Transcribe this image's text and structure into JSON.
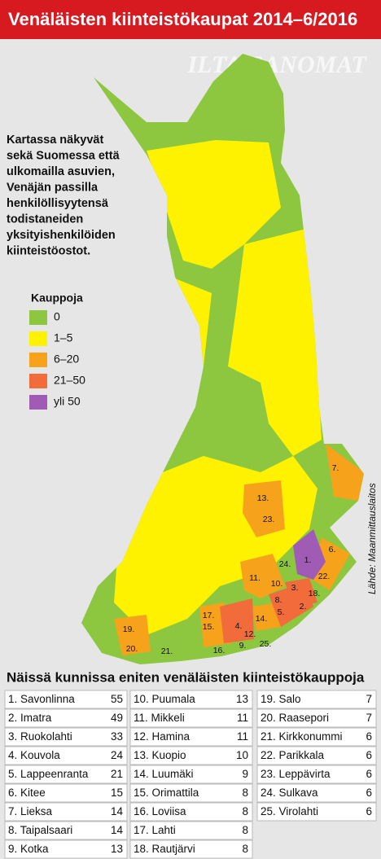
{
  "header": {
    "title": "Venäläisten kiinteistökaupat 2014–6/2016"
  },
  "watermark": "ILTA-SANOMAT",
  "description": [
    "Kartassa näkyvät",
    "sekä Suomessa että",
    "ulkomailla asuvien,",
    "Venäjän passilla",
    "henkilöllisyytensä",
    "todistaneiden",
    "yksityishenkilöiden",
    "kiinteistöostot."
  ],
  "legend": {
    "title": "Kauppoja",
    "items": [
      {
        "label": "0",
        "color": "#8dc63f"
      },
      {
        "label": "1–5",
        "color": "#fff200"
      },
      {
        "label": "6–20",
        "color": "#f7a21b"
      },
      {
        "label": "21–50",
        "color": "#f26b3a"
      },
      {
        "label": "yli 50",
        "color": "#a05bb5"
      }
    ]
  },
  "map_labels": [
    "7.",
    "13.",
    "23.",
    "6.",
    "1.",
    "24.",
    "22.",
    "11.",
    "10.",
    "3.",
    "18.",
    "8.",
    "2.",
    "5.",
    "17.",
    "15.",
    "4.",
    "14.",
    "12.",
    "25.",
    "9.",
    "16.",
    "19.",
    "20.",
    "21."
  ],
  "source": "Lähde: Maanmittauslaitos",
  "table": {
    "title": "Näissä kunnissa eniten venäläisten kiinteistökauppoja",
    "rows": [
      {
        "label": "1. Savonlinna",
        "value": 55
      },
      {
        "label": "2. Imatra",
        "value": 49
      },
      {
        "label": "3. Ruokolahti",
        "value": 33
      },
      {
        "label": "4. Kouvola",
        "value": 24
      },
      {
        "label": "5. Lappeenranta",
        "value": 21
      },
      {
        "label": "6. Kitee",
        "value": 15
      },
      {
        "label": "7. Lieksa",
        "value": 14
      },
      {
        "label": "8. Taipalsaari",
        "value": 14
      },
      {
        "label": "9. Kotka",
        "value": 13
      },
      {
        "label": "10. Puumala",
        "value": 13
      },
      {
        "label": "11. Mikkeli",
        "value": 11
      },
      {
        "label": "12. Hamina",
        "value": 11
      },
      {
        "label": "13. Kuopio",
        "value": 10
      },
      {
        "label": "14. Luumäki",
        "value": 9
      },
      {
        "label": "15. Orimattila",
        "value": 8
      },
      {
        "label": "16. Loviisa",
        "value": 8
      },
      {
        "label": "17. Lahti",
        "value": 8
      },
      {
        "label": "18. Rautjärvi",
        "value": 8
      },
      {
        "label": "19. Salo",
        "value": 7
      },
      {
        "label": "20. Raasepori",
        "value": 7
      },
      {
        "label": "21. Kirkkonummi",
        "value": 6
      },
      {
        "label": "22. Parikkala",
        "value": 6
      },
      {
        "label": "23. Leppävirta",
        "value": 6
      },
      {
        "label": "24. Sulkava",
        "value": 6
      },
      {
        "label": "25. Virolahti",
        "value": 6
      }
    ]
  }
}
